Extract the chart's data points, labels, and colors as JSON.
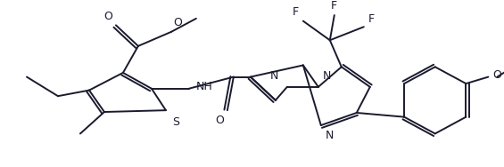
{
  "background_color": "#ffffff",
  "line_color": "#1a1a2e",
  "line_width": 1.4,
  "font_size": 8.0,
  "figsize": [
    5.65,
    1.88
  ],
  "dpi": 100,
  "xlim": [
    0,
    565
  ],
  "ylim": [
    0,
    188
  ]
}
